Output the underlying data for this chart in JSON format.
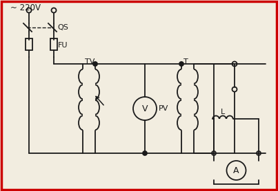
{
  "background": "#f2ede0",
  "border_color": "#cc0000",
  "line_color": "#1a1a1a",
  "figsize": [
    4.03,
    2.78
  ],
  "dpi": 100,
  "labels": {
    "voltage": "~ 220V",
    "QS": "QS",
    "FU": "FU",
    "TV": "TV",
    "T": "T",
    "PV": "PV",
    "L": "L",
    "A": "A",
    "V": "V"
  }
}
